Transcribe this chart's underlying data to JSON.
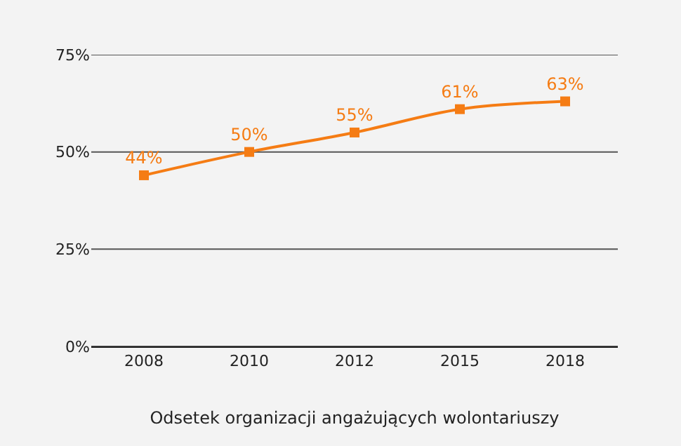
{
  "chart_data": {
    "type": "line",
    "xlabel": "Odsetek organizacji angażujących wolontariuszy",
    "categories": [
      "2008",
      "2010",
      "2012",
      "2015",
      "2018"
    ],
    "series": [
      {
        "color": "#f57c14",
        "values": [
          44,
          50,
          55,
          61,
          63
        ],
        "value_labels": [
          "44%",
          "50%",
          "55%",
          "61%",
          "63%"
        ]
      }
    ],
    "ylim": [
      0,
      75
    ],
    "yticks": [
      {
        "value": 0,
        "label": "0%"
      },
      {
        "value": 25,
        "label": "25%"
      },
      {
        "value": 50,
        "label": "50%"
      },
      {
        "value": 75,
        "label": "75%"
      }
    ],
    "grid": "y",
    "marker": "square",
    "line_style": "solid"
  }
}
